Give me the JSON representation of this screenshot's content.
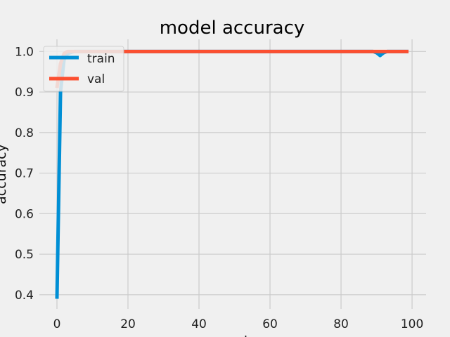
{
  "chart_data": {
    "type": "line",
    "title": "model accuracy",
    "xlabel": "epoch",
    "ylabel": "accuracy",
    "xlim": [
      -4.95,
      103.95
    ],
    "ylim": [
      0.365,
      1.03
    ],
    "xticks": [
      0,
      20,
      40,
      60,
      80,
      100
    ],
    "yticks": [
      0.4,
      0.5,
      0.6,
      0.7,
      0.8,
      0.9,
      1.0
    ],
    "grid": true,
    "legend_placement": "upper-left",
    "series": [
      {
        "name": "train",
        "color": "#008fd5",
        "x": [
          0,
          1,
          2,
          3,
          4,
          5,
          10,
          20,
          30,
          40,
          50,
          60,
          70,
          80,
          89,
          90,
          91,
          92,
          93,
          95,
          99
        ],
        "y": [
          0.39,
          0.9,
          0.98,
          0.995,
          0.998,
          1.0,
          1.0,
          1.0,
          1.0,
          1.0,
          1.0,
          1.0,
          1.0,
          1.0,
          1.0,
          0.997,
          0.99,
          0.997,
          1.0,
          1.0,
          1.0
        ]
      },
      {
        "name": "val",
        "color": "#fc4f30",
        "x": [
          0,
          1,
          2,
          3,
          4,
          5,
          10,
          20,
          30,
          40,
          50,
          60,
          70,
          80,
          90,
          99
        ],
        "y": [
          0.91,
          0.97,
          0.995,
          1.0,
          1.0,
          1.0,
          1.0,
          1.0,
          1.0,
          1.0,
          1.0,
          1.0,
          1.0,
          1.0,
          1.0,
          1.0
        ]
      }
    ]
  }
}
